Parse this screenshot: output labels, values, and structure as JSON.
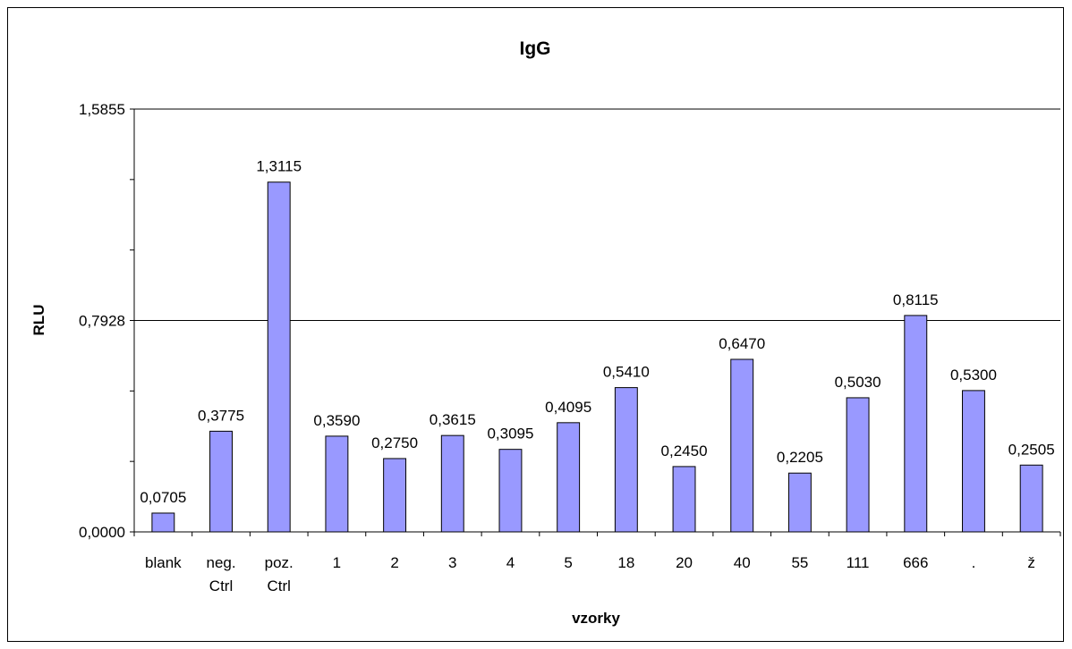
{
  "chart_data": {
    "type": "bar",
    "title": "IgG",
    "xlabel": "vzorky",
    "ylabel": "RLU",
    "ylim": [
      0,
      1.5855
    ],
    "y_ticks": [
      "0,0000",
      "0,7928",
      "1,5855"
    ],
    "y_tick_values": [
      0,
      0.7928,
      1.5855
    ],
    "gridlines": true,
    "legend": "none",
    "bar_color": "#9999ff",
    "categories": [
      [
        "blank"
      ],
      [
        "neg.",
        "Ctrl"
      ],
      [
        "poz.",
        "Ctrl"
      ],
      [
        "1"
      ],
      [
        "2"
      ],
      [
        "3"
      ],
      [
        "4"
      ],
      [
        "5"
      ],
      [
        "18"
      ],
      [
        "20"
      ],
      [
        "40"
      ],
      [
        "55"
      ],
      [
        "111"
      ],
      [
        "666"
      ],
      [
        "."
      ],
      [
        "ž"
      ]
    ],
    "values": [
      0.0705,
      0.3775,
      1.3115,
      0.359,
      0.275,
      0.3615,
      0.3095,
      0.4095,
      0.541,
      0.245,
      0.647,
      0.2205,
      0.503,
      0.8115,
      0.53,
      0.2505
    ],
    "data_labels": [
      "0,0705",
      "0,3775",
      "1,3115",
      "0,3590",
      "0,2750",
      "0,3615",
      "0,3095",
      "0,4095",
      "0,5410",
      "0,2450",
      "0,6470",
      "0,2205",
      "0,5030",
      "0,8115",
      "0,5300",
      "0,2505"
    ]
  }
}
